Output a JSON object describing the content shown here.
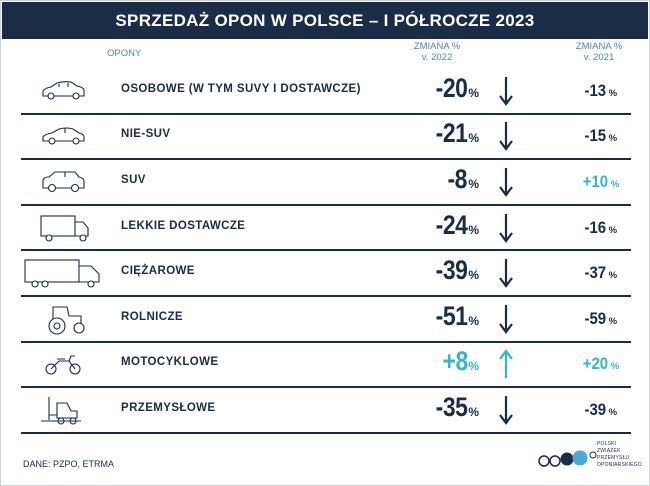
{
  "title": "SPRZEDAŻ OPON W POLSCE – I PÓŁROCZE 2023",
  "headers": {
    "opony": "OPONY",
    "change_2022_line1": "ZMIANA %",
    "change_2022_line2": "v. 2022",
    "change_2021_line1": "ZMIANA %",
    "change_2021_line2": "v. 2021"
  },
  "percent_sign": "%",
  "colors": {
    "navy": "#1b2c46",
    "accent_positive": "#31b5d6",
    "header_text": "#4d86b8"
  },
  "chart_data": {
    "type": "table",
    "title": "SPRZEDAŻ OPON W POLSCE – I PÓŁROCZE 2023",
    "columns": [
      "OPONY",
      "ZMIANA % v. 2022",
      "ZMIANA % v. 2021"
    ],
    "rows": [
      {
        "category": "OSOBOWE (W TYM SUVY I DOSTAWCZE)",
        "icon": "car-icon",
        "change_2022": "-20",
        "change_2021": "-13",
        "trend_2022": "down",
        "value_2022": -20,
        "value_2021": -13
      },
      {
        "category": "NIE-SUV",
        "icon": "sedan-icon",
        "change_2022": "-21",
        "change_2021": "-15",
        "trend_2022": "down",
        "value_2022": -21,
        "value_2021": -15
      },
      {
        "category": "SUV",
        "icon": "suv-icon",
        "change_2022": "-8",
        "change_2021": "+10",
        "trend_2022": "down",
        "value_2022": -8,
        "value_2021": 10
      },
      {
        "category": "LEKKIE DOSTAWCZE",
        "icon": "van-truck-icon",
        "change_2022": "-24",
        "change_2021": "-16",
        "trend_2022": "down",
        "value_2022": -24,
        "value_2021": -16
      },
      {
        "category": "CIĘŻAROWE",
        "icon": "truck-icon",
        "change_2022": "-39",
        "change_2021": "-37",
        "trend_2022": "down",
        "value_2022": -39,
        "value_2021": -37
      },
      {
        "category": "ROLNICZE",
        "icon": "tractor-icon",
        "change_2022": "-51",
        "change_2021": "-59",
        "trend_2022": "down",
        "value_2022": -51,
        "value_2021": -59
      },
      {
        "category": "MOTOCYKLOWE",
        "icon": "motorcycle-icon",
        "change_2022": "+8",
        "change_2021": "+20",
        "trend_2022": "up",
        "value_2022": 8,
        "value_2021": 20
      },
      {
        "category": "PRZEMYSŁOWE",
        "icon": "forklift-icon",
        "change_2022": "-35",
        "change_2021": "-39",
        "trend_2022": "down",
        "value_2022": -35,
        "value_2021": -39
      }
    ]
  },
  "source": "DANE: PZPO, ETRMA",
  "logo": {
    "lines": [
      "POLSKI",
      "ZWIĄZEK",
      "PRZEMYSŁU",
      "OPONIARSKIEGO"
    ]
  }
}
